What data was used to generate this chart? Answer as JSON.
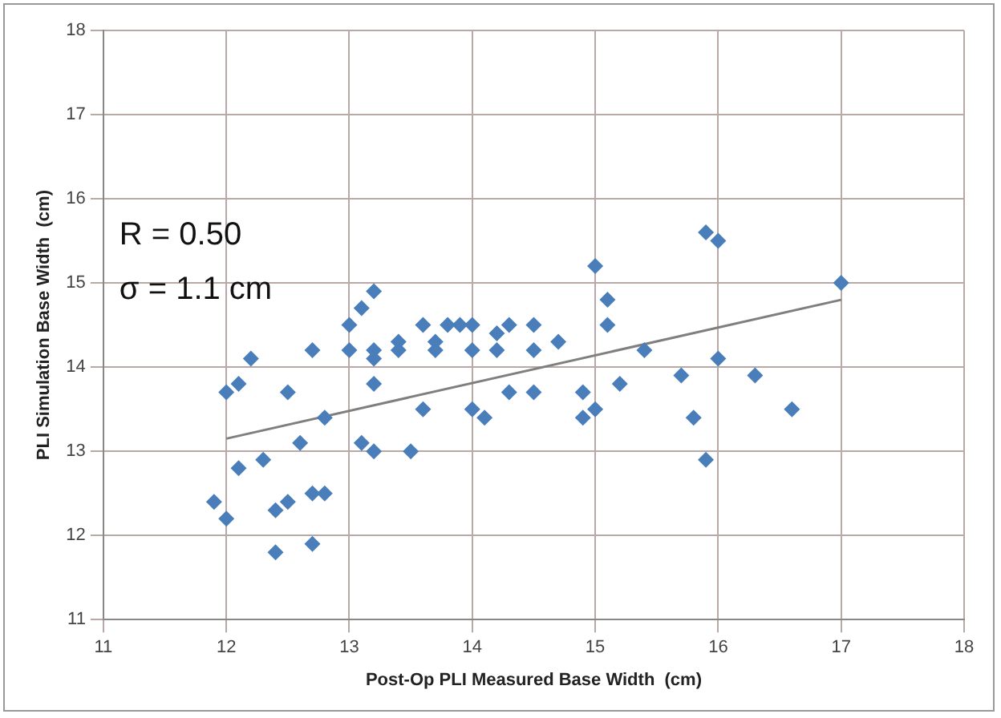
{
  "chart_data": {
    "type": "scatter",
    "xlabel": "Post-Op PLI Measured Base Width  (cm)",
    "ylabel": "PLI Simulation Base Width  (cm)",
    "xlim": [
      11,
      18
    ],
    "xticks": [
      11,
      12,
      13,
      14,
      15,
      16,
      17,
      18
    ],
    "ylim": [
      11,
      18
    ],
    "yticks": [
      11,
      12,
      13,
      14,
      15,
      16,
      17,
      18
    ],
    "grid": true,
    "marker": "diamond",
    "annotations": [
      "R = 0.50",
      "σ = 1.1 cm"
    ],
    "series": [
      {
        "color": "#4a7ebb",
        "x": [
          11.9,
          12.0,
          12.0,
          12.1,
          12.1,
          12.2,
          12.3,
          12.4,
          12.4,
          12.5,
          12.5,
          12.6,
          12.7,
          12.7,
          12.7,
          12.8,
          12.8,
          13.0,
          13.0,
          13.1,
          13.1,
          13.2,
          13.2,
          13.2,
          13.2,
          13.2,
          13.4,
          13.4,
          13.5,
          13.6,
          13.6,
          13.7,
          13.7,
          13.8,
          13.9,
          14.0,
          14.0,
          14.0,
          14.1,
          14.2,
          14.2,
          14.3,
          14.3,
          14.5,
          14.5,
          14.5,
          14.7,
          14.9,
          14.9,
          15.0,
          15.0,
          15.1,
          15.1,
          15.2,
          15.4,
          15.7,
          15.8,
          15.9,
          16.0,
          15.9,
          16.0,
          16.3,
          16.6,
          17.0
        ],
        "values": [
          12.4,
          12.2,
          13.7,
          13.8,
          12.8,
          14.1,
          12.9,
          12.3,
          11.8,
          12.4,
          13.7,
          13.1,
          12.5,
          11.9,
          14.2,
          12.5,
          13.4,
          14.2,
          14.5,
          14.7,
          13.1,
          14.9,
          14.2,
          14.1,
          13.8,
          13.0,
          14.3,
          14.2,
          13.0,
          14.5,
          13.5,
          14.2,
          14.3,
          14.5,
          14.5,
          14.5,
          14.2,
          13.5,
          13.4,
          14.2,
          14.4,
          14.5,
          13.7,
          14.5,
          14.2,
          13.7,
          14.3,
          13.7,
          13.4,
          13.5,
          15.2,
          14.8,
          14.5,
          13.8,
          14.2,
          13.9,
          13.4,
          15.6,
          15.5,
          12.9,
          14.1,
          13.9,
          13.5,
          15.0
        ]
      },
      {
        "type": "line",
        "color": "#7f7f7f",
        "x": [
          12.0,
          17.0
        ],
        "values": [
          13.15,
          14.8
        ],
        "marker": "none"
      }
    ]
  }
}
